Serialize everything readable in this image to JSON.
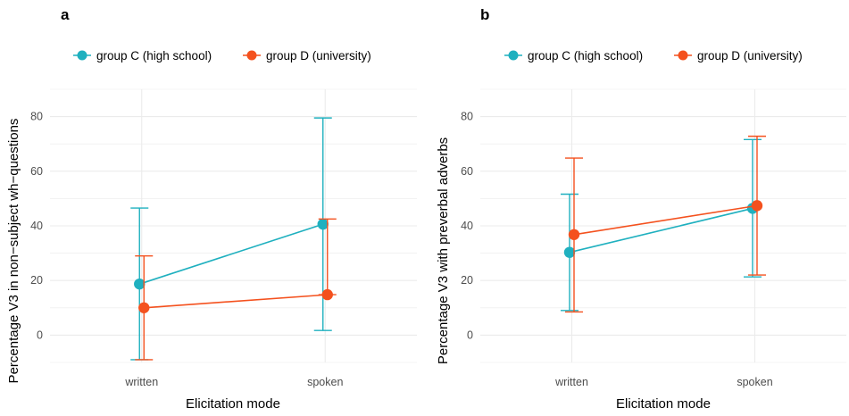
{
  "colors": {
    "group_c": "#1fb0bf",
    "group_d": "#f4511e",
    "grid": "#ebebeb"
  },
  "chart_data": [
    {
      "panel": "a",
      "type": "line",
      "legend_position": "top",
      "grid": true,
      "xlabel": "Elicitation mode",
      "ylabel": "Percentage V3 in non−subject wh−questions",
      "categories": [
        "written",
        "spoken"
      ],
      "ylim": [
        -10,
        90
      ],
      "yticks": [
        0,
        20,
        40,
        60,
        80
      ],
      "ytick_labels": [
        "0",
        "20",
        "40",
        "60",
        "80"
      ],
      "series": [
        {
          "name": "group C (high school)",
          "color": "#1fb0bf",
          "values": [
            18.7,
            40.6
          ],
          "lower": [
            -9,
            1.7
          ],
          "upper": [
            46.5,
            79.5
          ]
        },
        {
          "name": "group D (university)",
          "color": "#f4511e",
          "values": [
            10.0,
            14.8
          ],
          "lower": [
            -9,
            14.8
          ],
          "upper": [
            29,
            42.5
          ]
        }
      ]
    },
    {
      "panel": "b",
      "type": "line",
      "legend_position": "top",
      "grid": true,
      "xlabel": "Elicitation mode",
      "ylabel": "Percentage V3 with preverbal adverbs",
      "categories": [
        "written",
        "spoken"
      ],
      "ylim": [
        -10,
        90
      ],
      "yticks": [
        0,
        20,
        40,
        60,
        80
      ],
      "ytick_labels": [
        "0",
        "20",
        "40",
        "60",
        "80"
      ],
      "series": [
        {
          "name": "group C (high school)",
          "color": "#1fb0bf",
          "values": [
            30.3,
            46.4
          ],
          "lower": [
            9,
            21.3
          ],
          "upper": [
            51.6,
            71.6
          ]
        },
        {
          "name": "group D (university)",
          "color": "#f4511e",
          "values": [
            36.8,
            47.4
          ],
          "lower": [
            8.5,
            22
          ],
          "upper": [
            64.8,
            72.8
          ]
        }
      ]
    }
  ]
}
